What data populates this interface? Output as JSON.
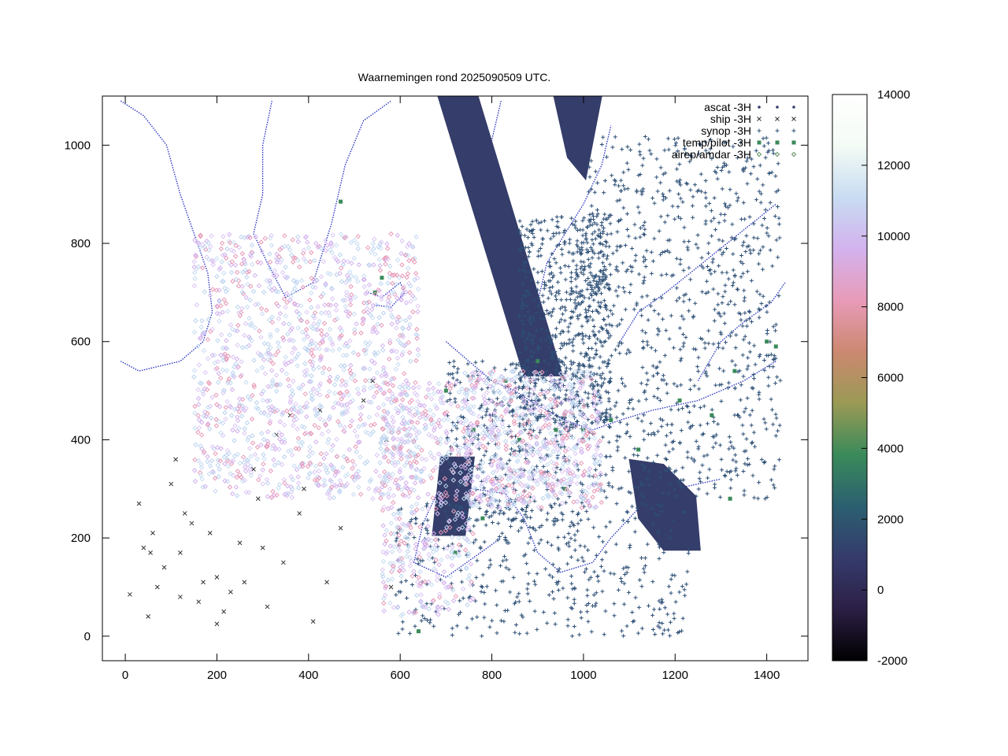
{
  "chart_data": {
    "type": "scatter",
    "title": "Waarnemingen rond 2025090509 UTC.",
    "xlabel": "",
    "ylabel": "",
    "xlim": [
      -50,
      1490
    ],
    "ylim": [
      -50,
      1100
    ],
    "xticks": [
      0,
      200,
      400,
      600,
      800,
      1000,
      1200,
      1400
    ],
    "yticks": [
      0,
      200,
      400,
      600,
      800,
      1000
    ],
    "legend_position": "top-right",
    "colorbar": {
      "min": -2000,
      "max": 14000,
      "ticks": [
        -2000,
        0,
        2000,
        4000,
        6000,
        8000,
        10000,
        12000,
        14000
      ],
      "gradient": [
        "#000000",
        "#2c1f45",
        "#353b6c",
        "#2b5f70",
        "#3a8a5a",
        "#9a9a55",
        "#cc8870",
        "#e89bb8",
        "#d3b2ee",
        "#c8dcf2",
        "#f4fbf5",
        "#ffffff"
      ]
    },
    "series": [
      {
        "name": "ascat -3H",
        "marker": "dot",
        "color": "#353d6a",
        "regions": [
          {
            "kind": "polygon",
            "points": [
              [
                682,
                1100
              ],
              [
                770,
                1100
              ],
              [
                955,
                530
              ],
              [
                870,
                530
              ]
            ]
          },
          {
            "kind": "polygon",
            "points": [
              [
                688,
                365
              ],
              [
                762,
                365
              ],
              [
                742,
                205
              ],
              [
                670,
                205
              ]
            ]
          },
          {
            "kind": "polygon",
            "points": [
              [
                1100,
                360
              ],
              [
                1175,
                350
              ],
              [
                1245,
                285
              ],
              [
                1255,
                175
              ],
              [
                1175,
                175
              ],
              [
                1120,
                240
              ]
            ]
          },
          {
            "kind": "polygon",
            "points": [
              [
                935,
                1100
              ],
              [
                1040,
                1100
              ],
              [
                1005,
                930
              ],
              [
                965,
                975
              ]
            ]
          }
        ]
      },
      {
        "name": "ship -3H",
        "marker": "x",
        "color": "#333333",
        "points": [
          [
            10,
            85
          ],
          [
            30,
            270
          ],
          [
            40,
            180
          ],
          [
            55,
            170
          ],
          [
            60,
            210
          ],
          [
            70,
            100
          ],
          [
            85,
            140
          ],
          [
            100,
            310
          ],
          [
            110,
            360
          ],
          [
            120,
            170
          ],
          [
            130,
            250
          ],
          [
            145,
            230
          ],
          [
            160,
            70
          ],
          [
            170,
            110
          ],
          [
            185,
            210
          ],
          [
            200,
            120
          ],
          [
            215,
            50
          ],
          [
            230,
            90
          ],
          [
            250,
            190
          ],
          [
            280,
            340
          ],
          [
            290,
            280
          ],
          [
            310,
            60
          ],
          [
            330,
            410
          ],
          [
            345,
            150
          ],
          [
            360,
            450
          ],
          [
            390,
            300
          ],
          [
            410,
            30
          ],
          [
            425,
            460
          ],
          [
            440,
            110
          ],
          [
            520,
            480
          ],
          [
            540,
            520
          ],
          [
            570,
            400
          ],
          [
            580,
            100
          ],
          [
            120,
            80
          ],
          [
            50,
            40
          ],
          [
            200,
            25
          ],
          [
            260,
            110
          ],
          [
            300,
            180
          ],
          [
            380,
            250
          ],
          [
            470,
            220
          ]
        ]
      },
      {
        "name": "synop -3H",
        "marker": "plus",
        "color": "#2d4f76",
        "regions": [
          {
            "kind": "box",
            "x": [
              860,
              1060
            ],
            "y": [
              430,
              860
            ],
            "n": 700
          },
          {
            "kind": "box",
            "x": [
              1010,
              1430
            ],
            "y": [
              280,
              1020
            ],
            "n": 900
          },
          {
            "kind": "box",
            "x": [
              590,
              1230
            ],
            "y": [
              0,
              270
            ],
            "n": 420
          },
          {
            "kind": "box",
            "x": [
              700,
              1000
            ],
            "y": [
              220,
              560
            ],
            "n": 400
          }
        ]
      },
      {
        "name": "temp/pilot -3H",
        "marker": "square",
        "color": "#3a8a5a",
        "points": [
          [
            470,
            885
          ],
          [
            545,
            700
          ],
          [
            640,
            10
          ],
          [
            720,
            170
          ],
          [
            780,
            240
          ],
          [
            860,
            400
          ],
          [
            940,
            420
          ],
          [
            960,
            300
          ],
          [
            1000,
            420
          ],
          [
            1060,
            440
          ],
          [
            1120,
            380
          ],
          [
            1210,
            480
          ],
          [
            1280,
            450
          ],
          [
            1320,
            280
          ],
          [
            1400,
            600
          ],
          [
            1420,
            590
          ],
          [
            1330,
            540
          ],
          [
            560,
            730
          ],
          [
            830,
            520
          ],
          [
            760,
            420
          ],
          [
            700,
            500
          ],
          [
            900,
            560
          ]
        ]
      },
      {
        "name": "airep/amdar -3H",
        "marker": "diamond",
        "color": "#c8dcf2",
        "regions": [
          {
            "kind": "box",
            "x": [
              150,
              640
            ],
            "y": [
              280,
              820
            ],
            "n": 1400
          },
          {
            "kind": "box",
            "x": [
              560,
              760
            ],
            "y": [
              40,
              520
            ],
            "n": 500
          },
          {
            "kind": "box",
            "x": [
              740,
              1040
            ],
            "y": [
              260,
              540
            ],
            "n": 700
          }
        ]
      }
    ]
  }
}
